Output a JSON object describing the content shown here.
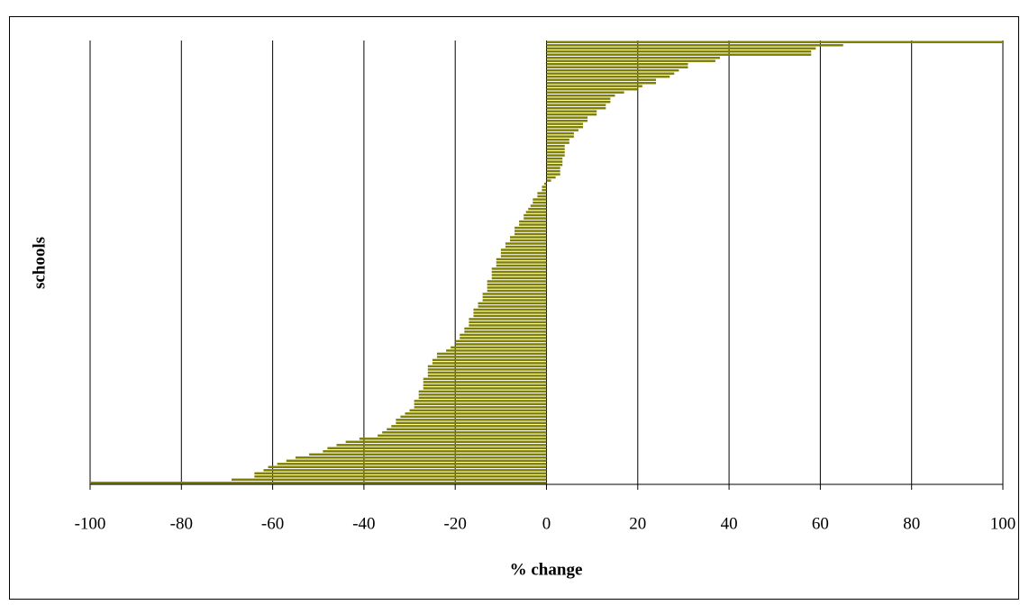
{
  "chart_data": {
    "type": "bar",
    "orientation": "horizontal",
    "xlabel": "% change",
    "ylabel": "schools",
    "color": "#808000",
    "xlim": [
      -100,
      100
    ],
    "xticks": [
      -100,
      -80,
      -60,
      -40,
      -20,
      0,
      20,
      40,
      60,
      80,
      100
    ],
    "grid": true,
    "categories": [
      null,
      null,
      null,
      null,
      null,
      null,
      null,
      null,
      null,
      null,
      null,
      null,
      null,
      null,
      null,
      null,
      null,
      null,
      null,
      null,
      null,
      null,
      null,
      null,
      null,
      null,
      null,
      null,
      null,
      null,
      null,
      null,
      null,
      null,
      null,
      null,
      null,
      null,
      null,
      null,
      null,
      null,
      null,
      null,
      null,
      null,
      null,
      null,
      null,
      null,
      null,
      null,
      null,
      null,
      null,
      null,
      null,
      null,
      null,
      null,
      null,
      null,
      null,
      null,
      null,
      null,
      null,
      null,
      null,
      null,
      null,
      null,
      null,
      null,
      null,
      null,
      null,
      null,
      null,
      null,
      null,
      null,
      null,
      null,
      null,
      null,
      null,
      null,
      null,
      null,
      null,
      null,
      null,
      null,
      null,
      null,
      null,
      null,
      null,
      null,
      null,
      null,
      null,
      null,
      null,
      null,
      null,
      null,
      null,
      null,
      null,
      null,
      null,
      null,
      null,
      null,
      null,
      null,
      null,
      null,
      null,
      null,
      null,
      null,
      null,
      null,
      null,
      null,
      null,
      null,
      null,
      null,
      null,
      null,
      null,
      null,
      null,
      null,
      null,
      null,
      null
    ],
    "values": [
      100,
      65,
      59,
      58,
      58,
      38,
      37,
      31,
      31,
      29,
      28,
      27,
      24,
      24,
      21,
      20,
      17,
      15,
      14,
      14,
      13,
      13,
      11,
      11,
      9,
      9,
      8,
      8,
      7,
      6,
      6,
      5,
      5,
      4,
      4,
      4,
      4,
      3.5,
      3.5,
      3.5,
      3,
      3,
      3,
      2,
      1,
      -0.5,
      -1,
      -1,
      -2,
      -2,
      -3,
      -3,
      -3.5,
      -4,
      -4.5,
      -5,
      -5,
      -6,
      -6,
      -7,
      -7,
      -7,
      -8,
      -8,
      -9,
      -9,
      -10,
      -10,
      -10,
      -11,
      -11,
      -11,
      -12,
      -12,
      -12,
      -12,
      -13,
      -13,
      -13,
      -13,
      -14,
      -14,
      -14,
      -15,
      -15,
      -16,
      -16,
      -16,
      -17,
      -17,
      -17,
      -18,
      -18,
      -19,
      -19,
      -20,
      -20,
      -21,
      -22,
      -24,
      -24,
      -25,
      -25,
      -26,
      -26,
      -26,
      -26,
      -27,
      -27,
      -27,
      -27,
      -28,
      -28,
      -28,
      -29,
      -29,
      -29,
      -30,
      -31,
      -32,
      -33,
      -33,
      -34,
      -35,
      -36,
      -37,
      -41,
      -44,
      -46,
      -48,
      -49,
      -52,
      -55,
      -57,
      -59,
      -61,
      -62,
      -64,
      -64,
      -69,
      -100
    ]
  }
}
